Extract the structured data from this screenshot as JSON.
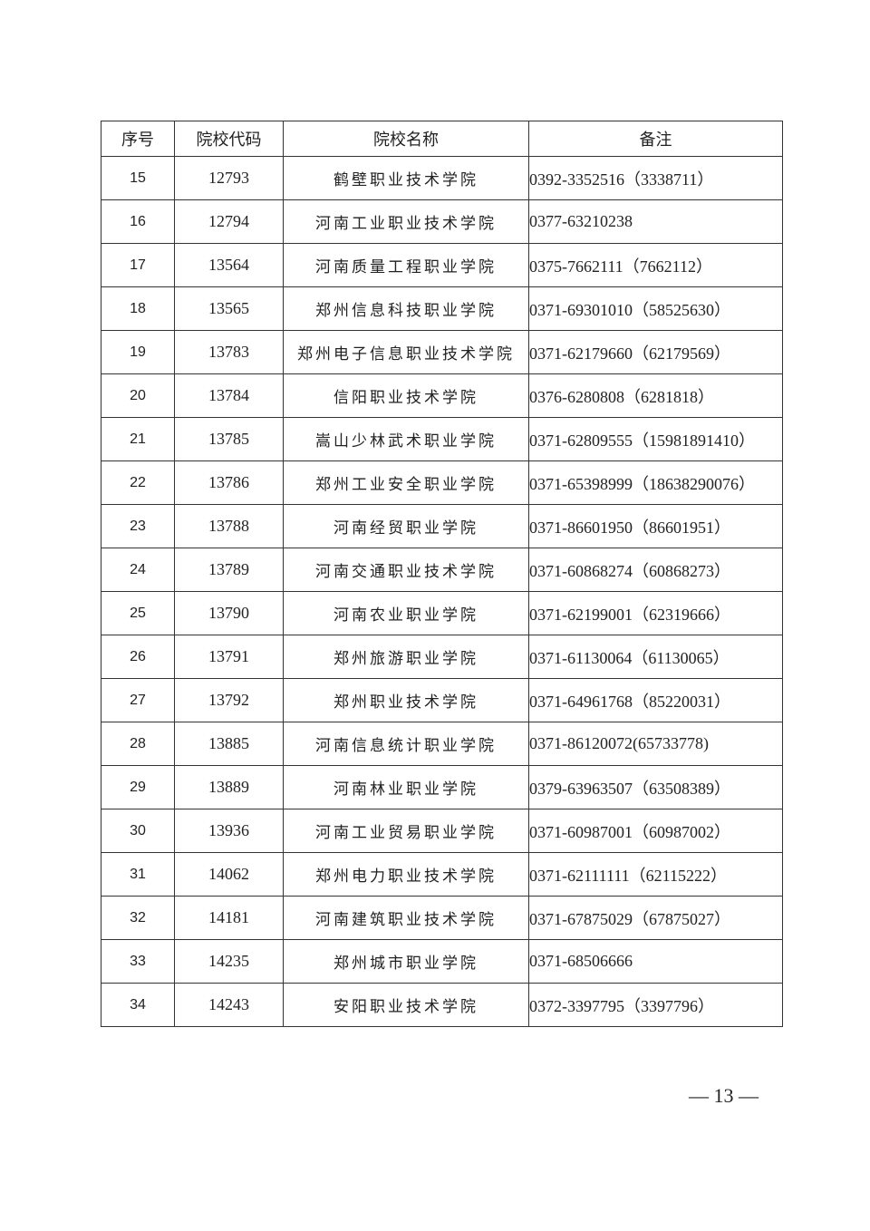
{
  "table": {
    "headers": [
      "序号",
      "院校代码",
      "院校名称",
      "备注"
    ],
    "rows": [
      [
        "15",
        "12793",
        "鹤壁职业技术学院",
        "0392-3352516（3338711）"
      ],
      [
        "16",
        "12794",
        "河南工业职业技术学院",
        "0377-63210238"
      ],
      [
        "17",
        "13564",
        "河南质量工程职业学院",
        "0375-7662111（7662112）"
      ],
      [
        "18",
        "13565",
        "郑州信息科技职业学院",
        "0371-69301010（58525630）"
      ],
      [
        "19",
        "13783",
        "郑州电子信息职业技术学院",
        "0371-62179660（62179569）"
      ],
      [
        "20",
        "13784",
        "信阳职业技术学院",
        "0376-6280808（6281818）"
      ],
      [
        "21",
        "13785",
        "嵩山少林武术职业学院",
        "0371-62809555（15981891410）"
      ],
      [
        "22",
        "13786",
        "郑州工业安全职业学院",
        "0371-65398999（18638290076）"
      ],
      [
        "23",
        "13788",
        "河南经贸职业学院",
        "0371-86601950（86601951）"
      ],
      [
        "24",
        "13789",
        "河南交通职业技术学院",
        "0371-60868274（60868273）"
      ],
      [
        "25",
        "13790",
        "河南农业职业学院",
        "0371-62199001（62319666）"
      ],
      [
        "26",
        "13791",
        "郑州旅游职业学院",
        "0371-61130064（61130065）"
      ],
      [
        "27",
        "13792",
        "郑州职业技术学院",
        "0371-64961768（85220031）"
      ],
      [
        "28",
        "13885",
        "河南信息统计职业学院",
        "0371-86120072(65733778)"
      ],
      [
        "29",
        "13889",
        "河南林业职业学院",
        "0379-63963507（63508389）"
      ],
      [
        "30",
        "13936",
        "河南工业贸易职业学院",
        "0371-60987001（60987002）"
      ],
      [
        "31",
        "14062",
        "郑州电力职业技术学院",
        "0371-62111111（62115222）"
      ],
      [
        "32",
        "14181",
        "河南建筑职业技术学院",
        "0371-67875029（67875027）"
      ],
      [
        "33",
        "14235",
        "郑州城市职业学院",
        "0371-68506666"
      ],
      [
        "34",
        "14243",
        "安阳职业技术学院",
        "0372-3397795（3397796）"
      ]
    ]
  },
  "page_number": "— 13 —"
}
